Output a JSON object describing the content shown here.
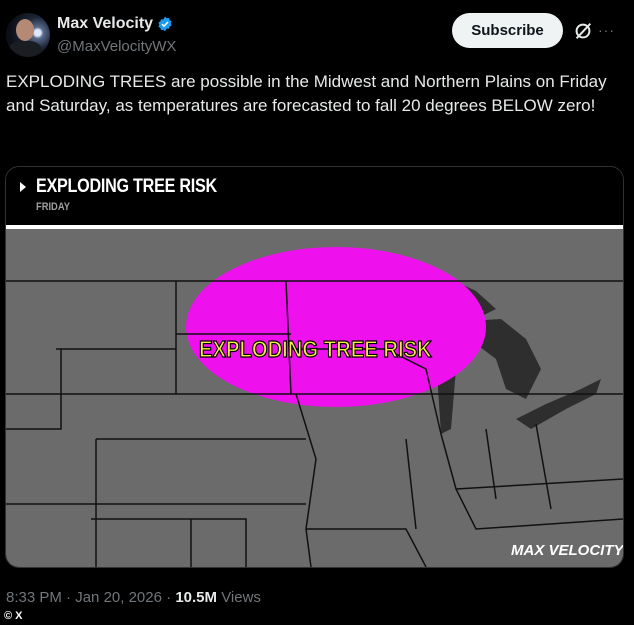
{
  "author": {
    "name": "Max Velocity",
    "handle": "@MaxVelocityWX",
    "verified": true
  },
  "actions": {
    "subscribe_label": "Subscribe",
    "grok_icon": "grok-icon",
    "more_icon": "more-icon",
    "more_label": "···"
  },
  "tweet_text": "EXPLODING TREES are possible in the Midwest and Northern Plains on Friday and Saturday, as temperatures are forecasted to fall 20 degrees BELOW zero!",
  "media": {
    "header_title": "EXPLODING TREE RISK",
    "header_subtitle": "FRIDAY",
    "map_label": "EXPLODING TREE RISK",
    "watermark": "MAX VELOCITY",
    "colors": {
      "risk": "#ee11ee",
      "land": "#6b6b6b",
      "lakes": "#2e2e2e",
      "label": "#f5f03a"
    }
  },
  "meta": {
    "time": "8:33 PM",
    "date": "Jan 20, 2026",
    "views_count": "10.5M",
    "views_label": "Views",
    "separator": "·"
  },
  "credit": "© X",
  "colors": {
    "verified": "#1d9bf0",
    "muted": "#71767b"
  }
}
